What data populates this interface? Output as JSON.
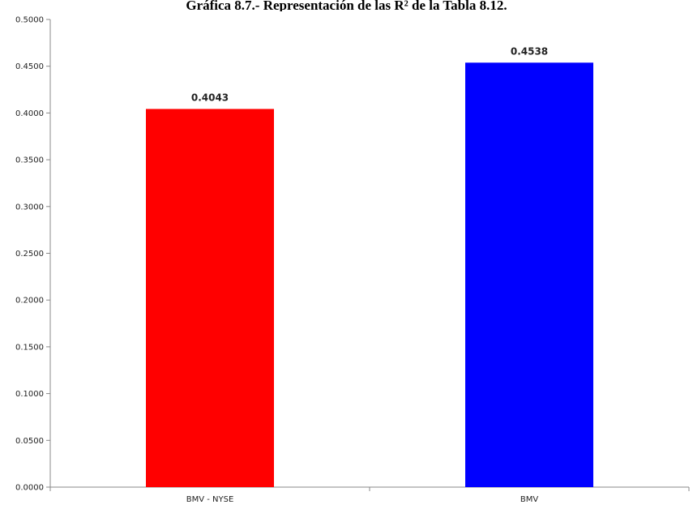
{
  "chart_data": {
    "type": "bar",
    "title": "Gráfica 8.7.- Representación de las R² de la Tabla 8.12.",
    "xlabel": "",
    "ylabel": "",
    "categories": [
      "BMV - NYSE",
      "BMV"
    ],
    "values": [
      0.4043,
      0.4538
    ],
    "data_labels": [
      "0.4043",
      "0.4538"
    ],
    "colors": [
      "#ff0000",
      "#0000ff"
    ],
    "ylim": [
      0,
      0.5
    ],
    "yticks": [
      0,
      0.05,
      0.1,
      0.15,
      0.2,
      0.25,
      0.3,
      0.35,
      0.4,
      0.45,
      0.5
    ],
    "ytick_labels": [
      "0.0000",
      "0.0500",
      "0.1000",
      "0.1500",
      "0.2000",
      "0.2500",
      "0.3000",
      "0.3500",
      "0.4000",
      "0.4500",
      "0.5000"
    ],
    "grid": false,
    "legend": "none"
  }
}
